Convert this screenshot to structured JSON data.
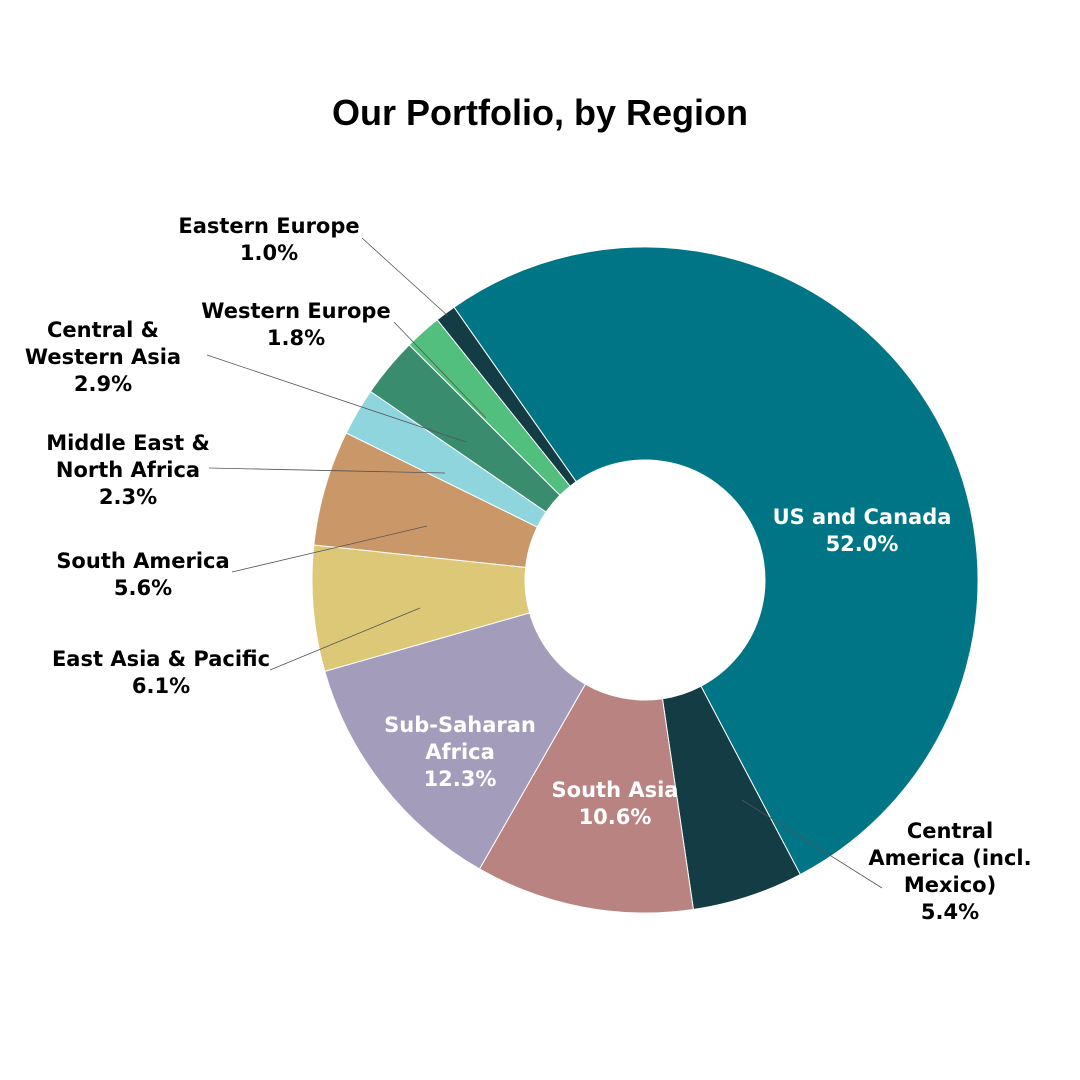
{
  "chart_data": {
    "type": "pie",
    "style": "donut",
    "title": "Our Portfolio, by Region",
    "slices": [
      {
        "name": "US and Canada",
        "value": 52.0,
        "label_text": "52.0%",
        "color": "#007586",
        "label_position": "inside",
        "label_color": "#ffffff"
      },
      {
        "name": "Central America (incl. Mexico)",
        "label_lines": [
          "Central",
          "America (incl.",
          "Mexico)"
        ],
        "value": 5.4,
        "label_text": "5.4%",
        "color": "#143c44",
        "label_position": "outside",
        "label_color": "#000000"
      },
      {
        "name": "South Asia",
        "value": 10.6,
        "label_text": "10.6%",
        "color": "#b88381",
        "label_position": "inside",
        "label_color": "#ffffff"
      },
      {
        "name": "Sub-Saharan Africa",
        "label_lines": [
          "Sub-Saharan",
          "Africa"
        ],
        "value": 12.3,
        "label_text": "12.3%",
        "color": "#a39dbb",
        "label_position": "inside",
        "label_color": "#ffffff"
      },
      {
        "name": "East Asia & Pacific",
        "value": 6.1,
        "label_text": "6.1%",
        "color": "#dcc877",
        "label_position": "outside",
        "label_color": "#000000"
      },
      {
        "name": "South America",
        "value": 5.6,
        "label_text": "5.6%",
        "color": "#ca9768",
        "label_position": "outside",
        "label_color": "#000000"
      },
      {
        "name": "Middle East & North Africa",
        "label_lines": [
          "Middle East &",
          "North Africa"
        ],
        "value": 2.3,
        "label_text": "2.3%",
        "color": "#8fd5de",
        "label_position": "outside",
        "label_color": "#000000"
      },
      {
        "name": "Central & Western Asia",
        "label_lines": [
          "Central &",
          "Western Asia"
        ],
        "value": 2.9,
        "label_text": "2.9%",
        "color": "#3a8c6e",
        "label_position": "outside",
        "label_color": "#000000"
      },
      {
        "name": "Western Europe",
        "value": 1.8,
        "label_text": "1.8%",
        "color": "#52bf7e",
        "label_position": "outside",
        "label_color": "#000000"
      },
      {
        "name": "Eastern Europe",
        "value": 1.0,
        "label_text": "1.0%",
        "color": "#143c44",
        "label_position": "outside",
        "label_color": "#000000"
      }
    ],
    "start_angle_deg": 325,
    "direction": "clockwise"
  }
}
